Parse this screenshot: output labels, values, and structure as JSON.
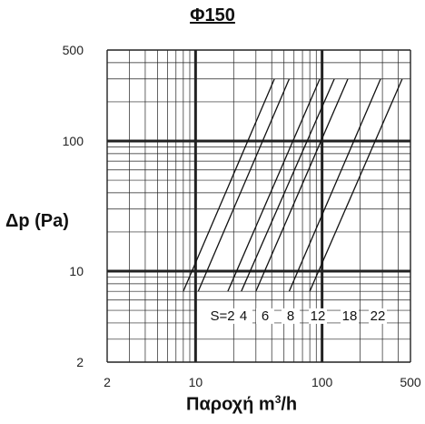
{
  "chart_data": {
    "type": "line",
    "title": "Φ150",
    "xlabel": "Παροχή m",
    "xlabel_sup": "3",
    "xlabel_suffix": "/h",
    "ylabel": "Δp (Pa)",
    "x_scale": "log",
    "y_scale": "log",
    "xlim": [
      2,
      500
    ],
    "ylim": [
      2,
      500
    ],
    "x_ticks": [
      "2",
      "10",
      "100",
      "500"
    ],
    "y_ticks": [
      "2",
      "10",
      "100",
      "500"
    ],
    "grid": true,
    "series_label_prefix": "S=",
    "series": [
      {
        "name": "2",
        "points": [
          [
            8,
            7
          ],
          [
            42,
            300
          ]
        ]
      },
      {
        "name": "4",
        "points": [
          [
            10.5,
            7
          ],
          [
            55,
            300
          ]
        ]
      },
      {
        "name": "6",
        "points": [
          [
            18,
            7
          ],
          [
            96,
            300
          ]
        ]
      },
      {
        "name": "8",
        "points": [
          [
            23,
            7
          ],
          [
            125,
            300
          ]
        ]
      },
      {
        "name": "12",
        "points": [
          [
            30,
            7
          ],
          [
            160,
            300
          ]
        ]
      },
      {
        "name": "18",
        "points": [
          [
            55,
            7
          ],
          [
            290,
            300
          ]
        ]
      },
      {
        "name": "22",
        "points": [
          [
            80,
            7
          ],
          [
            430,
            300
          ]
        ]
      }
    ]
  }
}
